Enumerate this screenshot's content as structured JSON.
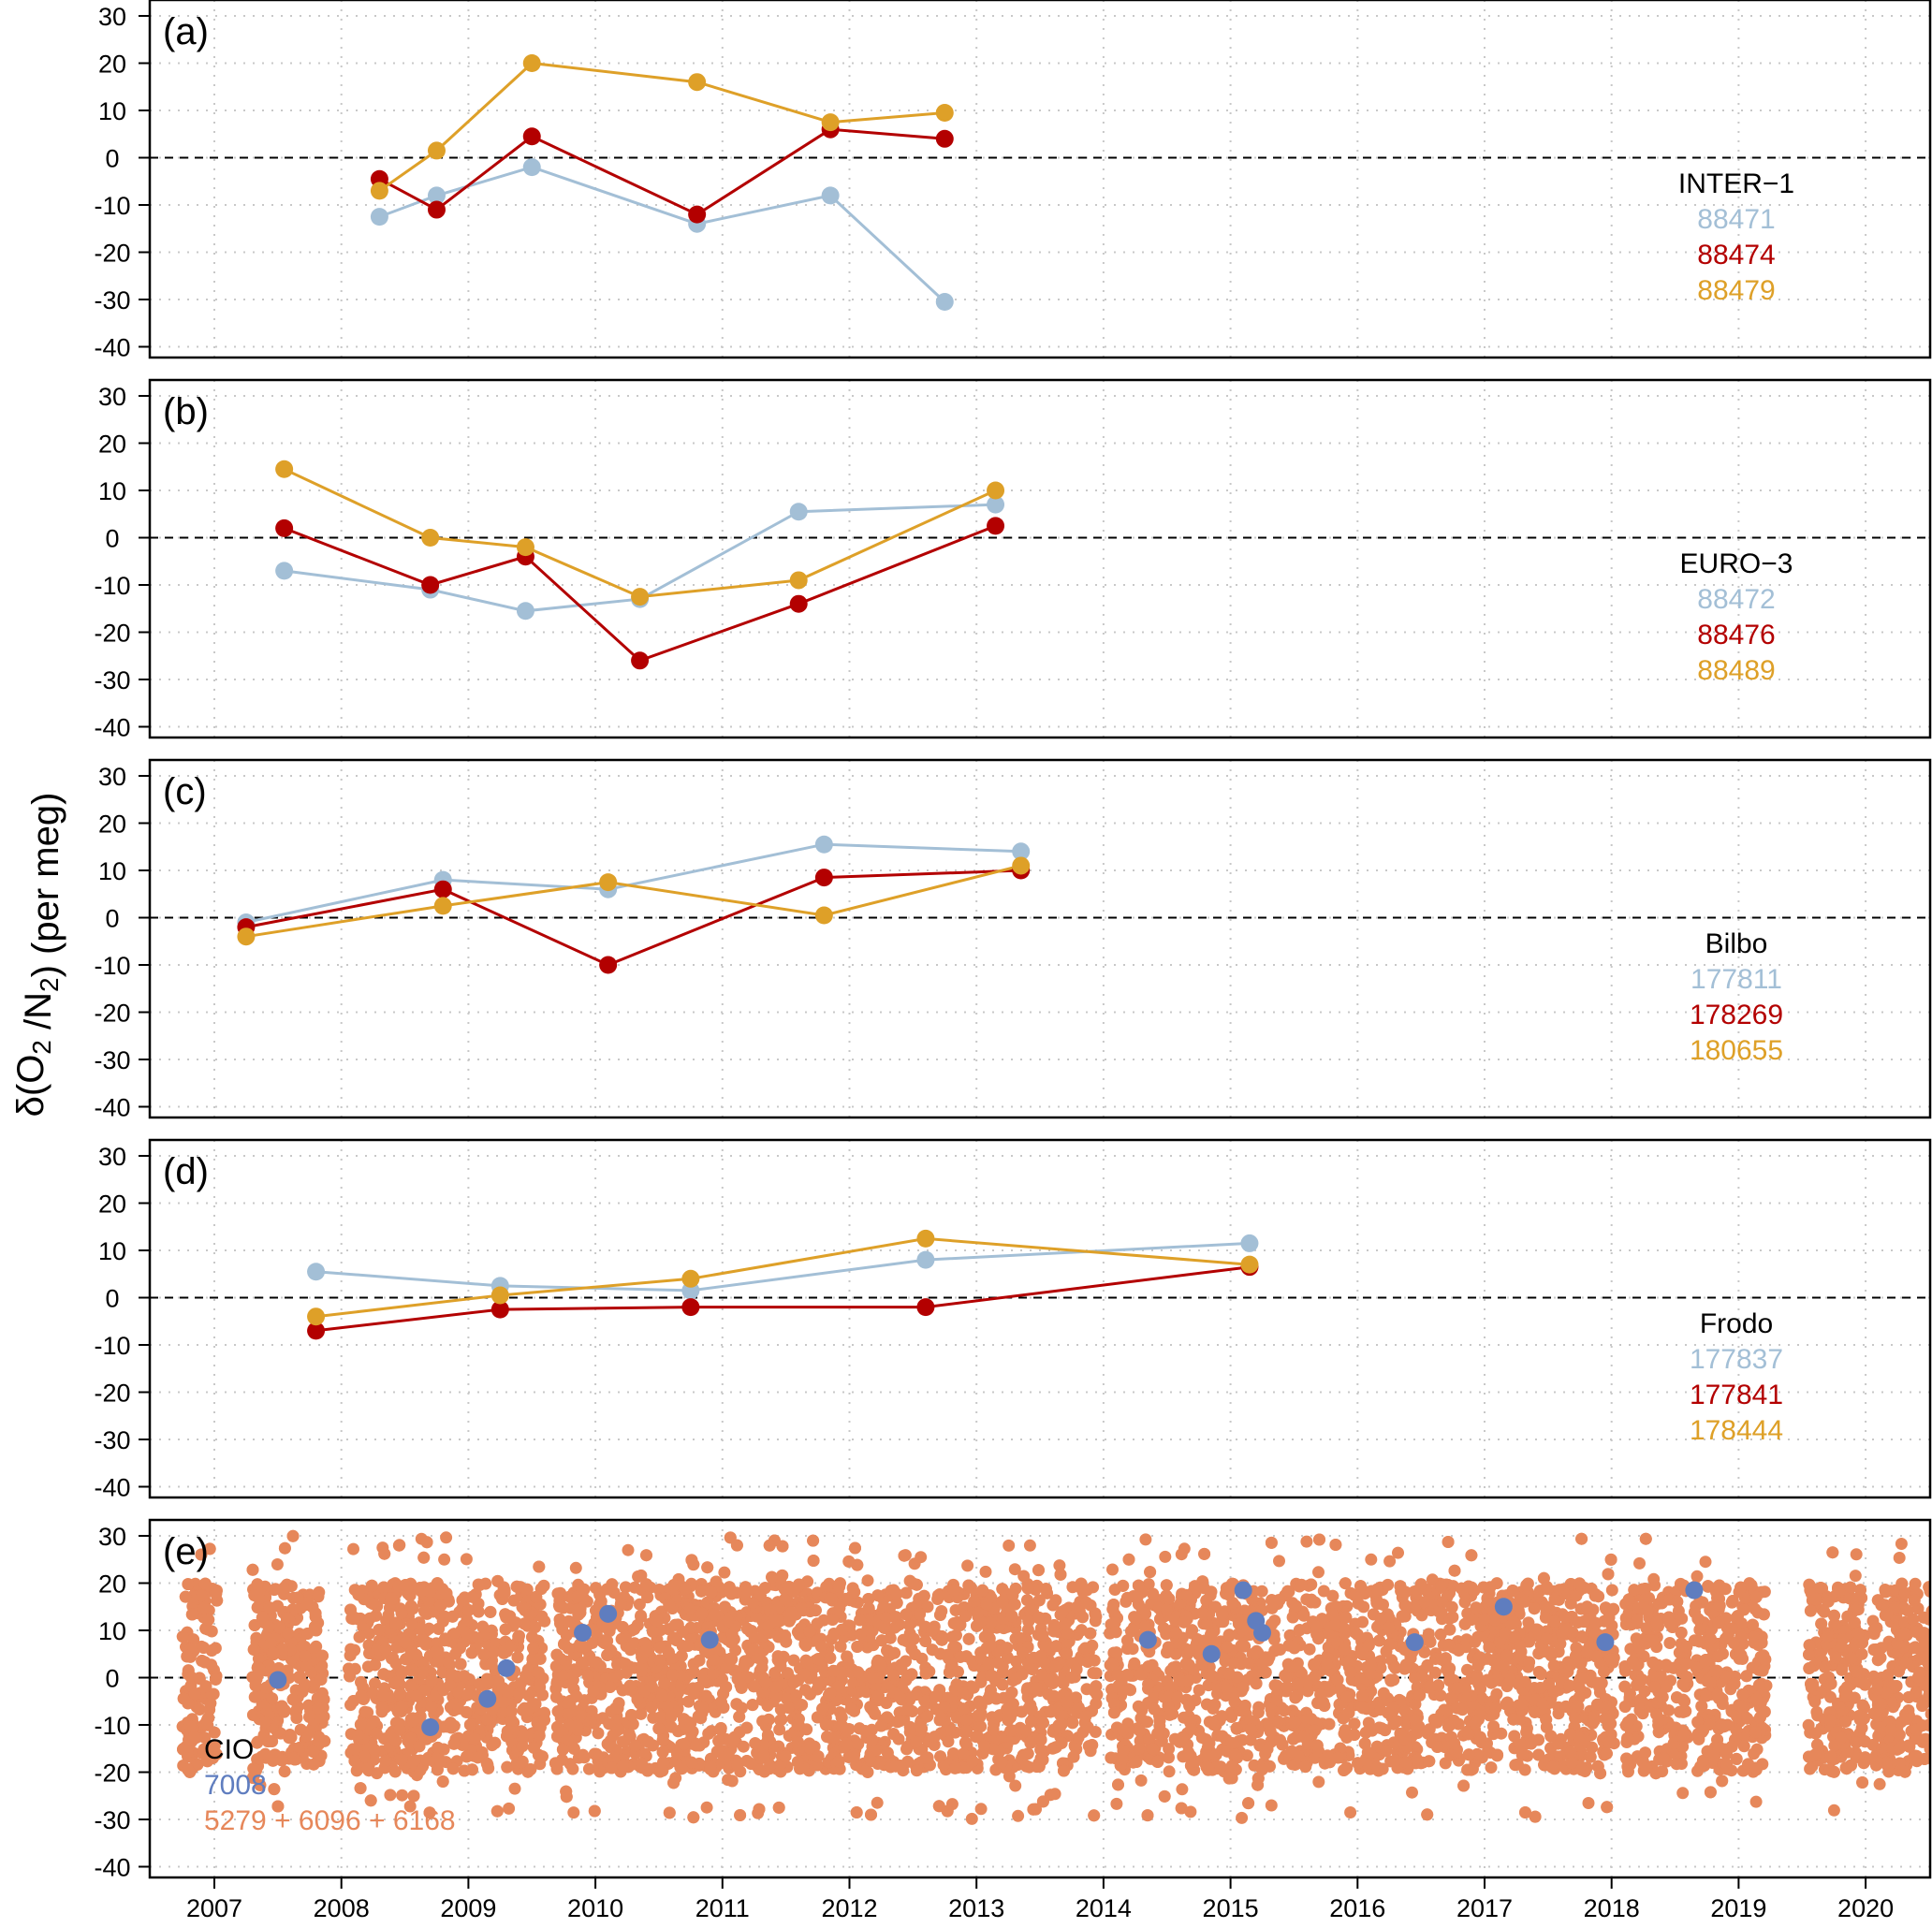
{
  "colors": {
    "light_blue": "#a3bfd6",
    "dark_red": "#b30000",
    "gold": "#dea028",
    "cio_blue": "#5f7dbf",
    "cio_orange": "#e6875a"
  },
  "ylabel": {
    "delta": "δ(O",
    "sub1": "2",
    "mid": " /N",
    "sub2": "2",
    "tail": ") (per meg)"
  },
  "chart_data": [
    {
      "type": "line",
      "panel": "(a)",
      "xlim": [
        2006.5,
        2020.55
      ],
      "ylim": [
        -42,
        32
      ],
      "yticks": [
        -40,
        -30,
        -20,
        -10,
        0,
        10,
        20,
        30
      ],
      "xticks": [
        2007,
        2008,
        2009,
        2010,
        2011,
        2012,
        2013,
        2014,
        2015,
        2016,
        2017,
        2018,
        2019,
        2020
      ],
      "grid": true,
      "zero_line": true,
      "legend_title": "INTER−1",
      "series": [
        {
          "name": "88471",
          "color": "#a3bfd6",
          "x": [
            2008.3,
            2008.75,
            2009.5,
            2010.8,
            2011.85,
            2012.75
          ],
          "y": [
            -12.5,
            -8,
            -2,
            -14,
            -8,
            -30.5
          ]
        },
        {
          "name": "88474",
          "color": "#b30000",
          "x": [
            2008.3,
            2008.75,
            2009.5,
            2010.8,
            2011.85,
            2012.75
          ],
          "y": [
            -4.5,
            -11,
            4.5,
            -12,
            6,
            4
          ]
        },
        {
          "name": "88479",
          "color": "#dea028",
          "x": [
            2008.3,
            2008.75,
            2009.5,
            2010.8,
            2011.85,
            2012.75
          ],
          "y": [
            -7,
            1.5,
            20,
            16,
            7.5,
            9.5
          ]
        }
      ]
    },
    {
      "type": "line",
      "panel": "(b)",
      "xlim": [
        2006.5,
        2020.55
      ],
      "ylim": [
        -42,
        32
      ],
      "yticks": [
        -40,
        -30,
        -20,
        -10,
        0,
        10,
        20,
        30
      ],
      "grid": true,
      "zero_line": true,
      "legend_title": "EURO−3",
      "series": [
        {
          "name": "88472",
          "color": "#a3bfd6",
          "x": [
            2007.55,
            2008.7,
            2009.45,
            2010.35,
            2011.6,
            2013.15
          ],
          "y": [
            -7,
            -11,
            -15.5,
            -13,
            5.5,
            7
          ]
        },
        {
          "name": "88476",
          "color": "#b30000",
          "x": [
            2007.55,
            2008.7,
            2009.45,
            2010.35,
            2011.6,
            2013.15
          ],
          "y": [
            2,
            -10,
            -4,
            -26,
            -14,
            2.5
          ]
        },
        {
          "name": "88489",
          "color": "#dea028",
          "x": [
            2007.55,
            2008.7,
            2009.45,
            2010.35,
            2011.6,
            2013.15
          ],
          "y": [
            14.5,
            0,
            -2,
            -12.5,
            -9,
            10
          ]
        }
      ]
    },
    {
      "type": "line",
      "panel": "(c)",
      "xlim": [
        2006.5,
        2020.55
      ],
      "ylim": [
        -42,
        32
      ],
      "yticks": [
        -40,
        -30,
        -20,
        -10,
        0,
        10,
        20,
        30
      ],
      "grid": true,
      "zero_line": true,
      "legend_title": "Bilbo",
      "series": [
        {
          "name": "177811",
          "color": "#a3bfd6",
          "x": [
            2007.25,
            2008.8,
            2010.1,
            2011.8,
            2013.35
          ],
          "y": [
            -1,
            8,
            6,
            15.5,
            14
          ]
        },
        {
          "name": "178269",
          "color": "#b30000",
          "x": [
            2007.25,
            2008.8,
            2010.1,
            2011.8,
            2013.35
          ],
          "y": [
            -2,
            6,
            -10,
            8.5,
            10
          ]
        },
        {
          "name": "180655",
          "color": "#dea028",
          "x": [
            2007.25,
            2008.8,
            2010.1,
            2011.8,
            2013.35
          ],
          "y": [
            -4,
            2.5,
            7.5,
            0.5,
            11
          ]
        }
      ]
    },
    {
      "type": "line",
      "panel": "(d)",
      "xlim": [
        2006.5,
        2020.55
      ],
      "ylim": [
        -42,
        32
      ],
      "yticks": [
        -40,
        -30,
        -20,
        -10,
        0,
        10,
        20,
        30
      ],
      "grid": true,
      "zero_line": true,
      "legend_title": "Frodo",
      "series": [
        {
          "name": "177837",
          "color": "#a3bfd6",
          "x": [
            2007.8,
            2009.25,
            2010.75,
            2012.6,
            2015.15
          ],
          "y": [
            5.5,
            2.5,
            1.5,
            8,
            11.5
          ]
        },
        {
          "name": "177841",
          "color": "#b30000",
          "x": [
            2007.8,
            2009.25,
            2010.75,
            2012.6,
            2015.15
          ],
          "y": [
            -7,
            -2.5,
            -2,
            -2,
            6.5
          ]
        },
        {
          "name": "178444",
          "color": "#dea028",
          "x": [
            2007.8,
            2009.25,
            2010.75,
            2012.6,
            2015.15
          ],
          "y": [
            -4,
            0.5,
            4,
            12.5,
            7
          ]
        }
      ]
    },
    {
      "type": "scatter",
      "panel": "(e)",
      "xlim": [
        2006.5,
        2020.55
      ],
      "ylim": [
        -42,
        32
      ],
      "yticks": [
        -40,
        -30,
        -20,
        -10,
        0,
        10,
        20,
        30
      ],
      "xticks": [
        2007,
        2008,
        2009,
        2010,
        2011,
        2012,
        2013,
        2014,
        2015,
        2016,
        2017,
        2018,
        2019,
        2020
      ],
      "grid": true,
      "zero_line": true,
      "legend_title": "CIO",
      "series": [
        {
          "name": "7008",
          "color": "#5f7dbf",
          "x": [
            2007.5,
            2008.7,
            2009.15,
            2009.3,
            2009.9,
            2010.1,
            2010.9,
            2014.35,
            2014.85,
            2015.1,
            2015.2,
            2015.25,
            2016.45,
            2017.15,
            2017.95,
            2018.65
          ],
          "y": [
            -0.5,
            -10.5,
            -4.5,
            2,
            9.5,
            13.5,
            8,
            8,
            5,
            18.5,
            12,
            9.5,
            7.5,
            15,
            7.5,
            18.5
          ]
        },
        {
          "name": "5279 + 6096 + 6168",
          "color": "#e6875a",
          "style": "dense continuous record",
          "gaps": [
            [
              2007.02,
              2007.3
            ],
            [
              2007.87,
              2008.05
            ],
            [
              2009.6,
              2009.68
            ],
            [
              2013.95,
              2014.05
            ],
            [
              2018.02,
              2018.1
            ],
            [
              2018.6,
              2018.65
            ],
            [
              2019.22,
              2019.55
            ],
            [
              2020.0,
              2020.05
            ]
          ],
          "typical_range": [
            -20,
            20
          ],
          "extreme_range": [
            -30,
            30
          ]
        }
      ]
    }
  ]
}
